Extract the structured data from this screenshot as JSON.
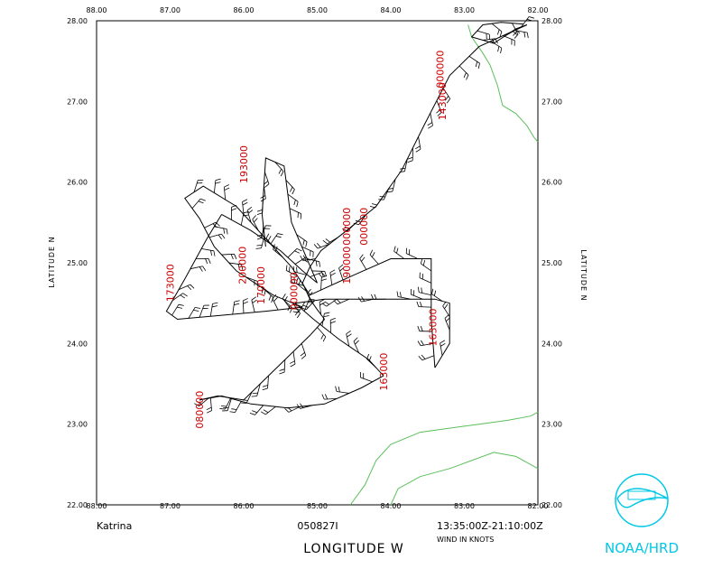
{
  "chart_data": {
    "type": "map",
    "storm": "Katrina",
    "flight_id": "050827I",
    "time_range": "13:35:00Z-21:10:00Z",
    "wind_units_label": "WIND IN KNOTS",
    "xlabel": "LONGITUDE   W",
    "ylabel": "LATITUDE   N",
    "credit": "NOAA/HRD",
    "xlim": [
      88.0,
      82.0
    ],
    "ylim": [
      22.0,
      28.0
    ],
    "lon_ticks": [
      "88.00",
      "87.00",
      "86.00",
      "85.00",
      "84.00",
      "83.00",
      "82.00"
    ],
    "lat_ticks": [
      "22.00",
      "23.00",
      "24.00",
      "25.00",
      "26.00",
      "27.00",
      "28.00"
    ],
    "colors": {
      "track": "#000000",
      "coast": "#5bbf5b",
      "labels": "#cc0000",
      "logo": "#00c8e6"
    },
    "time_labels": [
      {
        "text": "193000",
        "lon": 85.95,
        "lat": 26.22
      },
      {
        "text": "173000",
        "lon": 86.95,
        "lat": 24.75
      },
      {
        "text": "200000",
        "lon": 85.97,
        "lat": 24.97
      },
      {
        "text": "170000",
        "lon": 85.72,
        "lat": 24.72
      },
      {
        "text": "190000",
        "lon": 84.55,
        "lat": 24.97
      },
      {
        "text": "000000",
        "lon": 85.27,
        "lat": 24.65
      },
      {
        "text": "000000",
        "lon": 84.55,
        "lat": 25.45
      },
      {
        "text": "000000",
        "lon": 84.32,
        "lat": 25.45
      },
      {
        "text": "143000",
        "lon": 83.25,
        "lat": 27.0
      },
      {
        "text": "000000",
        "lon": 83.28,
        "lat": 27.4
      },
      {
        "text": "163000",
        "lon": 83.38,
        "lat": 24.2
      },
      {
        "text": "163000",
        "lon": 84.05,
        "lat": 23.65
      },
      {
        "text": "080000",
        "lon": 86.55,
        "lat": 23.18
      }
    ],
    "track": [
      [
        [
          82.15,
          27.95
        ],
        [
          82.8,
          27.68
        ],
        [
          83.2,
          27.32
        ],
        [
          83.55,
          26.7
        ],
        [
          83.85,
          26.15
        ],
        [
          84.2,
          25.7
        ],
        [
          84.6,
          25.4
        ],
        [
          84.95,
          25.15
        ],
        [
          85.1,
          24.95
        ],
        [
          85.2,
          24.75
        ],
        [
          85.1,
          24.55
        ],
        [
          85.0,
          24.42
        ],
        [
          84.9,
          24.3
        ]
      ],
      [
        [
          84.9,
          24.3
        ],
        [
          85.1,
          24.1
        ],
        [
          85.55,
          23.7
        ],
        [
          86.0,
          23.3
        ],
        [
          86.35,
          23.35
        ],
        [
          86.6,
          23.3
        ]
      ],
      [
        [
          86.6,
          23.3
        ],
        [
          86.3,
          23.35
        ],
        [
          85.9,
          23.25
        ],
        [
          85.4,
          23.2
        ],
        [
          84.9,
          23.25
        ],
        [
          84.4,
          23.45
        ],
        [
          84.1,
          23.6
        ],
        [
          84.3,
          23.8
        ],
        [
          84.7,
          24.05
        ],
        [
          85.05,
          24.3
        ],
        [
          85.3,
          24.5
        ]
      ],
      [
        [
          85.3,
          24.5
        ],
        [
          84.9,
          24.55
        ],
        [
          84.4,
          24.55
        ],
        [
          83.9,
          24.55
        ],
        [
          83.4,
          24.55
        ],
        [
          83.2,
          24.5
        ],
        [
          83.2,
          24.0
        ],
        [
          83.4,
          23.7
        ]
      ],
      [
        [
          83.4,
          23.7
        ],
        [
          83.45,
          24.3
        ],
        [
          83.45,
          25.05
        ],
        [
          84.0,
          25.05
        ],
        [
          84.5,
          24.85
        ],
        [
          85.1,
          24.6
        ]
      ],
      [
        [
          85.1,
          24.6
        ],
        [
          85.35,
          24.95
        ],
        [
          85.7,
          25.3
        ],
        [
          86.1,
          25.7
        ],
        [
          86.55,
          25.95
        ],
        [
          86.8,
          25.8
        ],
        [
          86.6,
          25.55
        ],
        [
          86.4,
          25.2
        ],
        [
          86.1,
          24.9
        ],
        [
          85.6,
          24.6
        ],
        [
          85.2,
          24.45
        ]
      ],
      [
        [
          85.2,
          24.45
        ],
        [
          85.7,
          24.4
        ],
        [
          86.3,
          24.35
        ],
        [
          86.9,
          24.3
        ],
        [
          87.05,
          24.4
        ],
        [
          86.8,
          24.8
        ],
        [
          86.5,
          25.3
        ],
        [
          86.3,
          25.6
        ]
      ],
      [
        [
          86.3,
          25.6
        ],
        [
          85.9,
          25.4
        ],
        [
          85.5,
          25.15
        ],
        [
          85.2,
          24.9
        ],
        [
          85.0,
          24.75
        ],
        [
          85.35,
          25.5
        ],
        [
          85.45,
          26.2
        ],
        [
          85.7,
          26.3
        ],
        [
          85.75,
          25.6
        ],
        [
          85.7,
          25.2
        ]
      ],
      [
        [
          82.15,
          27.95
        ],
        [
          82.3,
          27.9
        ],
        [
          82.6,
          27.72
        ],
        [
          82.9,
          27.8
        ],
        [
          82.75,
          27.95
        ],
        [
          82.5,
          27.98
        ],
        [
          82.2,
          27.96
        ]
      ]
    ],
    "coastlines": [
      [
        [
          82.95,
          27.95
        ],
        [
          82.9,
          27.8
        ],
        [
          82.75,
          27.6
        ],
        [
          82.65,
          27.45
        ],
        [
          82.55,
          27.2
        ],
        [
          82.48,
          26.95
        ],
        [
          82.3,
          26.85
        ],
        [
          82.15,
          26.7
        ],
        [
          82.05,
          26.55
        ],
        [
          82.0,
          26.5
        ]
      ],
      [
        [
          84.55,
          22.0
        ],
        [
          84.35,
          22.25
        ],
        [
          84.2,
          22.55
        ],
        [
          84.0,
          22.75
        ],
        [
          83.6,
          22.9
        ],
        [
          83.2,
          22.95
        ],
        [
          82.8,
          23.0
        ],
        [
          82.4,
          23.05
        ],
        [
          82.1,
          23.1
        ],
        [
          82.0,
          23.15
        ]
      ],
      [
        [
          84.0,
          22.0
        ],
        [
          83.9,
          22.2
        ],
        [
          83.6,
          22.35
        ],
        [
          83.2,
          22.45
        ],
        [
          82.9,
          22.55
        ],
        [
          82.6,
          22.65
        ],
        [
          82.3,
          22.6
        ],
        [
          82.1,
          22.5
        ],
        [
          82.0,
          22.45
        ]
      ]
    ]
  }
}
